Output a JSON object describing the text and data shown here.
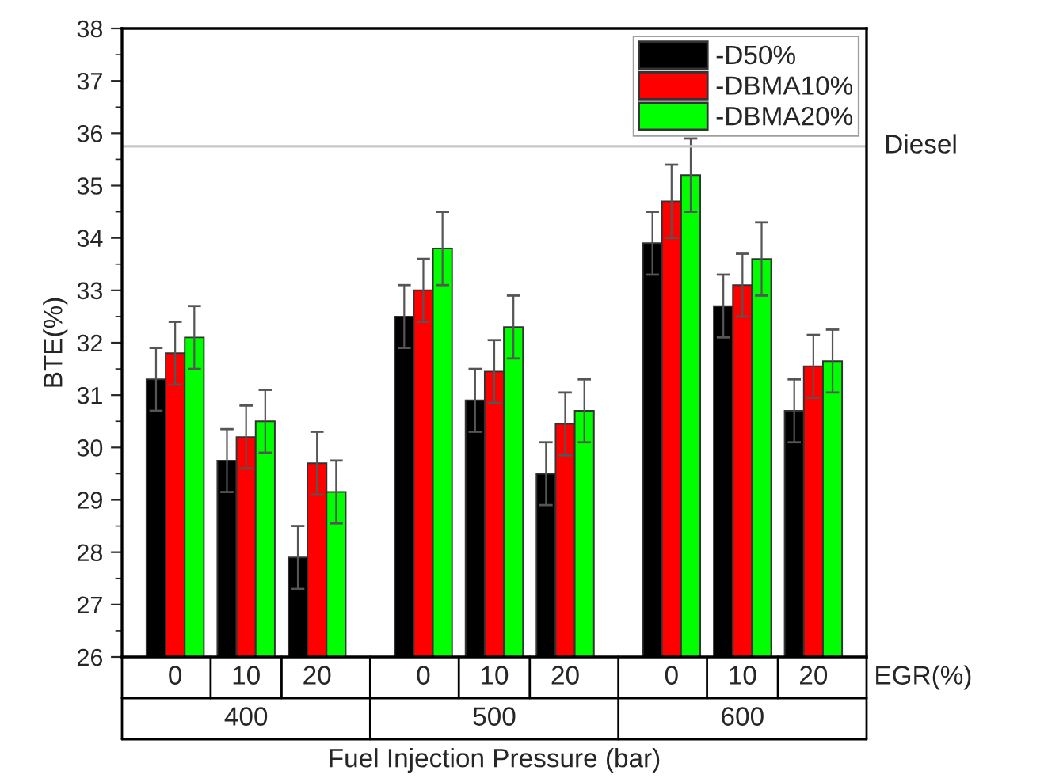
{
  "chart_data": {
    "type": "bar",
    "categories": [
      "0",
      "10",
      "20",
      "0",
      "10",
      "20",
      "0",
      "10",
      "20"
    ],
    "series": [
      {
        "name": "-D50%",
        "color": "#000000",
        "values": [
          31.3,
          29.75,
          27.9,
          32.5,
          30.9,
          29.5,
          33.9,
          32.7,
          30.7
        ],
        "errors": [
          0.6,
          0.6,
          0.6,
          0.6,
          0.6,
          0.6,
          0.6,
          0.6,
          0.6
        ]
      },
      {
        "name": "-DBMA10%",
        "color": "#ff0000",
        "values": [
          31.8,
          30.2,
          29.7,
          33.0,
          31.45,
          30.45,
          34.7,
          33.1,
          31.55
        ],
        "errors": [
          0.6,
          0.6,
          0.6,
          0.6,
          0.6,
          0.6,
          0.7,
          0.6,
          0.6
        ]
      },
      {
        "name": "-DBMA20%",
        "color": "#00ff00",
        "values": [
          32.1,
          30.5,
          29.15,
          33.8,
          32.3,
          30.7,
          35.2,
          33.6,
          31.65
        ],
        "errors": [
          0.6,
          0.6,
          0.6,
          0.7,
          0.6,
          0.6,
          0.7,
          0.7,
          0.6
        ]
      }
    ],
    "ylabel": "BTE(%)",
    "xlabel": "Fuel Injection Pressure (bar)",
    "ylim": [
      26,
      38
    ],
    "yticks": [
      26,
      27,
      28,
      29,
      30,
      31,
      32,
      33,
      34,
      35,
      36,
      37,
      38
    ],
    "ref_lines": [
      {
        "axis": "y",
        "value": 35.75,
        "label": "Diesel",
        "color": "#c8c8c8"
      }
    ],
    "annotations": [
      "EGR(%)",
      "400",
      "500",
      "600"
    ],
    "legend": "top right",
    "grid": false
  }
}
